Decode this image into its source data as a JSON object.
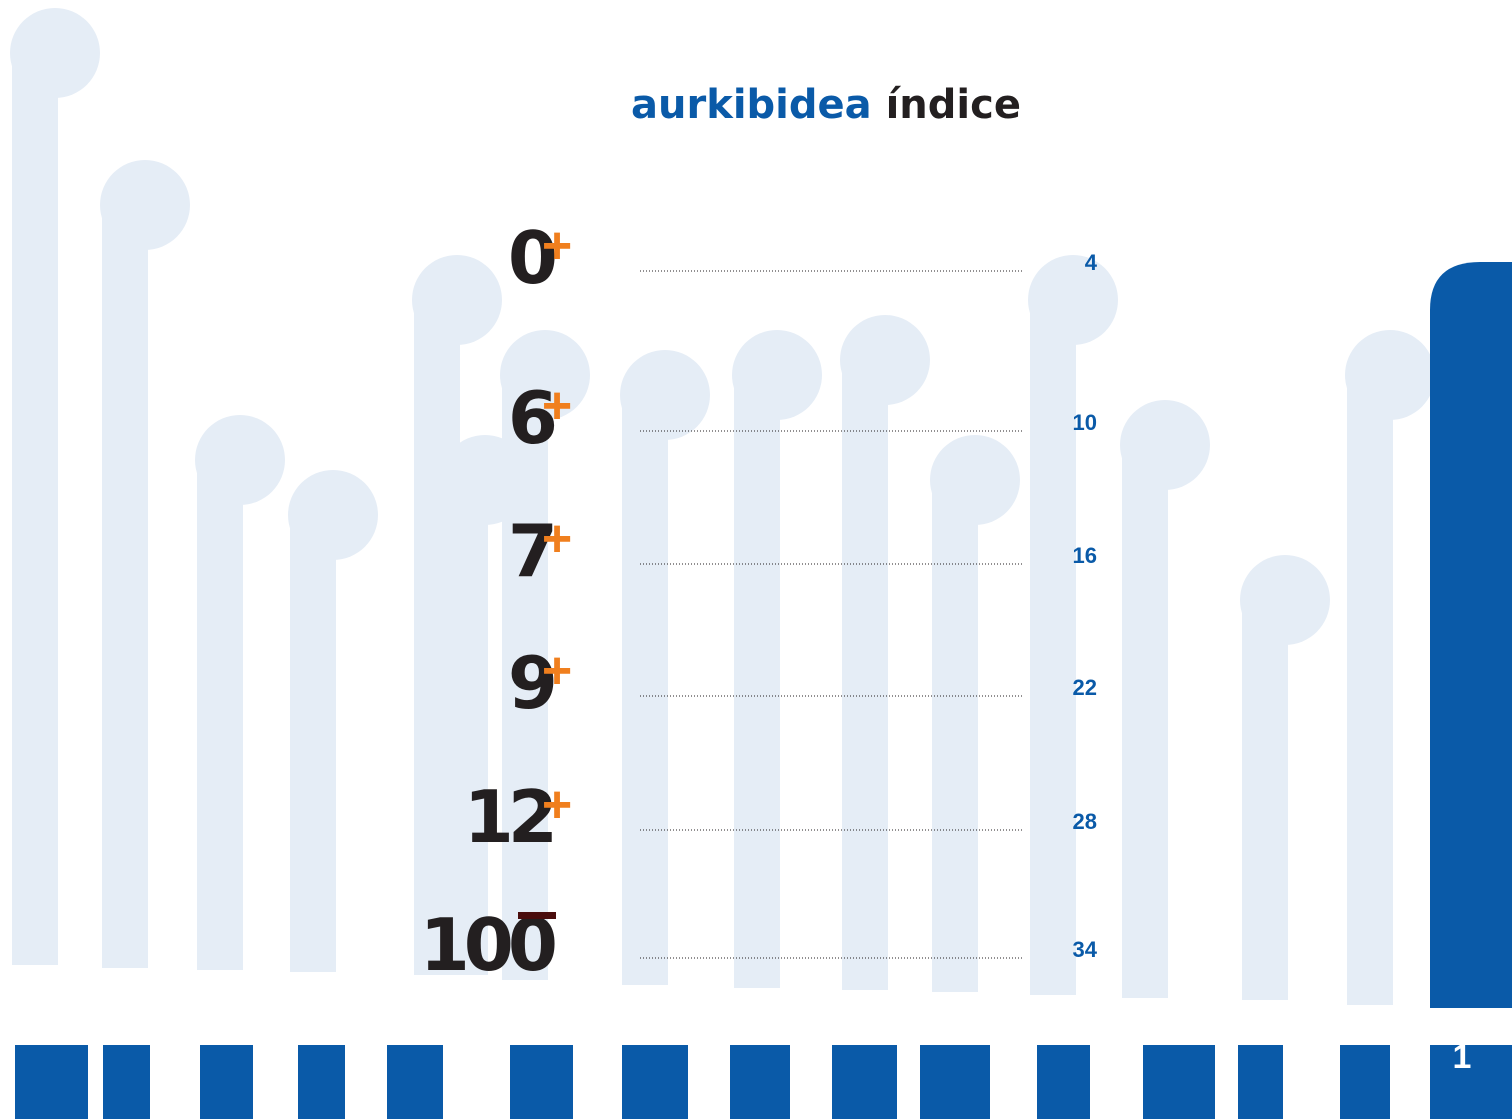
{
  "header": {
    "title_primary": "aurkibidea",
    "title_secondary": "índice"
  },
  "entries": [
    {
      "label": "0",
      "symbol": "+",
      "page": 4
    },
    {
      "label": "6",
      "symbol": "+",
      "page": 10
    },
    {
      "label": "7",
      "symbol": "+",
      "page": 16
    },
    {
      "label": "9",
      "symbol": "+",
      "page": 22
    },
    {
      "label": "12",
      "symbol": "+",
      "page": 28
    },
    {
      "label": "100",
      "page": 34
    }
  ],
  "footer": {
    "page_number": 1
  }
}
